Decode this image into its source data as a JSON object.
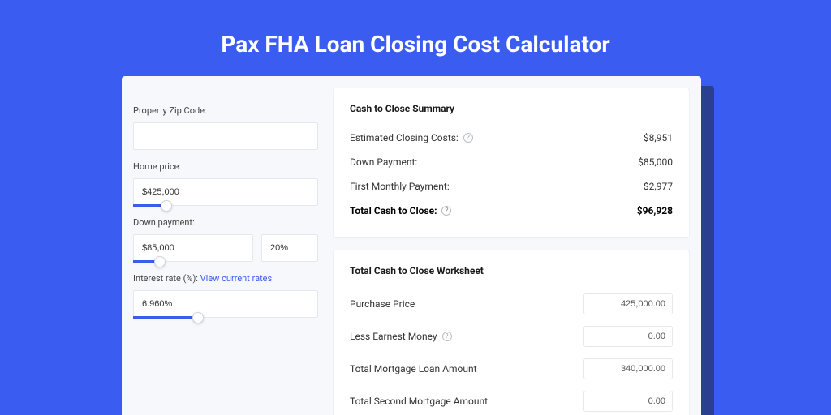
{
  "colors": {
    "background": "#3a5cf0",
    "shadow": "#2a3f8f",
    "card_bg": "#f6f8fb",
    "panel_bg": "#ffffff",
    "border": "#e5e8ee",
    "slider": "#3a5cf0",
    "link": "#3a5cf0",
    "text": "#333333",
    "title": "#ffffff"
  },
  "page": {
    "title": "Pax FHA Loan Closing Cost Calculator"
  },
  "inputs": {
    "zip": {
      "label": "Property Zip Code:",
      "value": ""
    },
    "home_price": {
      "label": "Home price:",
      "value": "$425,000",
      "slider_fill_pct": 18,
      "thumb_pct": 18
    },
    "down_payment": {
      "label": "Down payment:",
      "value": "$85,000",
      "pct": "20%",
      "slider_fill_pct": 22,
      "thumb_pct": 22
    },
    "interest_rate": {
      "label": "Interest rate (%):",
      "link": "View current rates",
      "value": "6.960%",
      "slider_fill_pct": 35,
      "thumb_pct": 35
    }
  },
  "summary": {
    "title": "Cash to Close Summary",
    "rows": [
      {
        "label": "Estimated Closing Costs:",
        "help": true,
        "value": "$8,951",
        "bold": false
      },
      {
        "label": "Down Payment:",
        "help": false,
        "value": "$85,000",
        "bold": false
      },
      {
        "label": "First Monthly Payment:",
        "help": false,
        "value": "$2,977",
        "bold": false
      },
      {
        "label": "Total Cash to Close:",
        "help": true,
        "value": "$96,928",
        "bold": true
      }
    ]
  },
  "worksheet": {
    "title": "Total Cash to Close Worksheet",
    "rows": [
      {
        "label": "Purchase Price",
        "help": false,
        "value": "425,000.00"
      },
      {
        "label": "Less Earnest Money",
        "help": true,
        "value": "0.00"
      },
      {
        "label": "Total Mortgage Loan Amount",
        "help": false,
        "value": "340,000.00"
      },
      {
        "label": "Total Second Mortgage Amount",
        "help": false,
        "value": "0.00"
      }
    ]
  }
}
